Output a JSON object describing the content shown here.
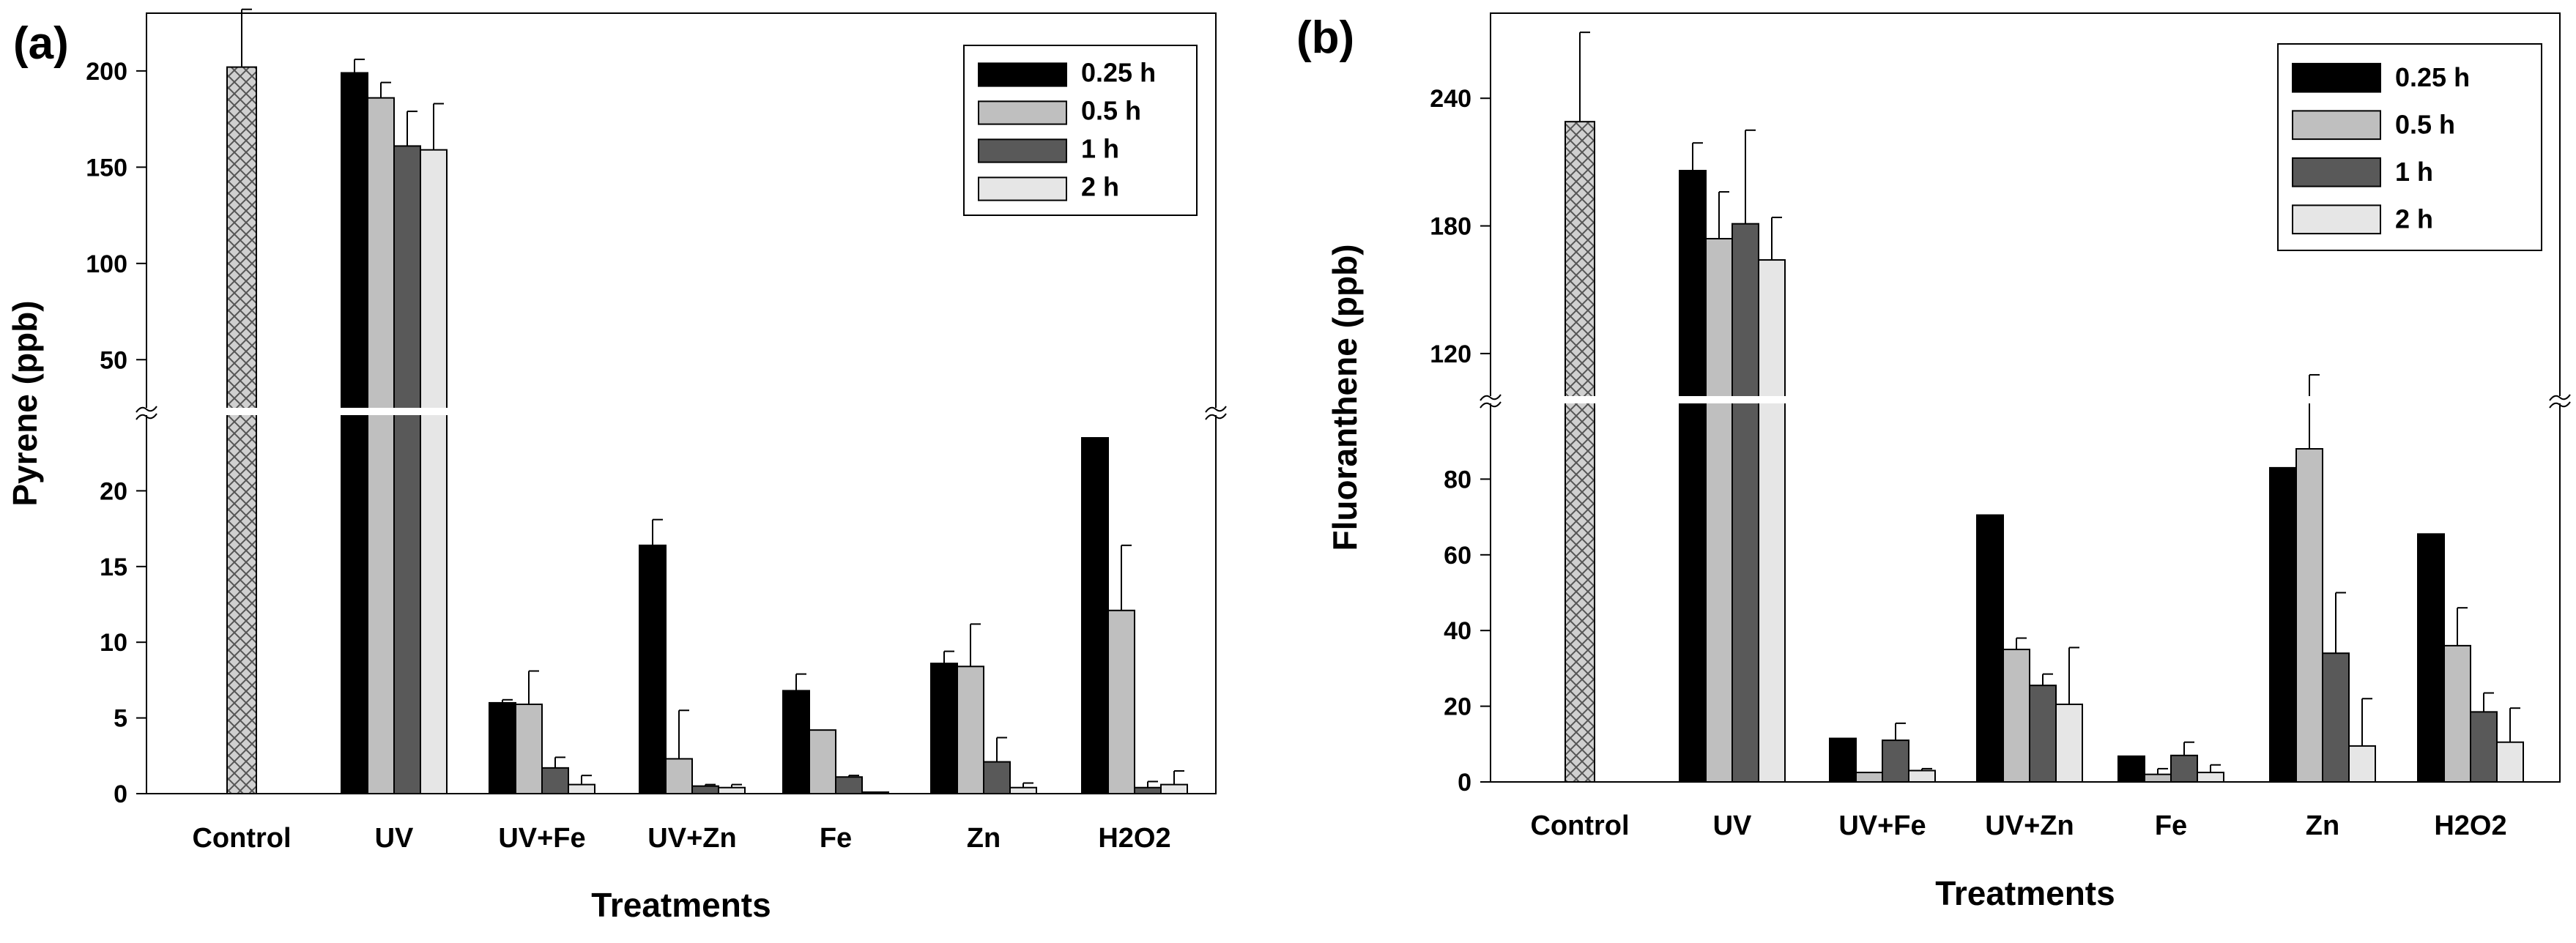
{
  "chart_data": [
    {
      "panel_label": "(a)",
      "type": "bar",
      "xlabel": "Treatments",
      "ylabel": "Pyrene (ppb)",
      "categories": [
        "Control",
        "UV",
        "UV+Fe",
        "UV+Zn",
        "Fe",
        "Zn",
        "H2O2"
      ],
      "axis_break": true,
      "lower_ylim": [
        0,
        25
      ],
      "lower_ticks": [
        0,
        5,
        10,
        15,
        20
      ],
      "upper_ylim": [
        25,
        230
      ],
      "upper_ticks": [
        50,
        100,
        150,
        200
      ],
      "control": {
        "value": 202,
        "error": 30
      },
      "series": [
        {
          "name": "0.25 h",
          "color": "#000000",
          "values": [
            null,
            199,
            6.0,
            16.4,
            6.8,
            8.6,
            23.5
          ],
          "errors": [
            null,
            7,
            0.2,
            1.7,
            1.1,
            0.8,
            0
          ]
        },
        {
          "name": "0.5 h",
          "color": "#bfbfbf",
          "values": [
            null,
            186,
            5.9,
            2.3,
            4.2,
            8.4,
            12.1
          ],
          "errors": [
            null,
            8,
            2.2,
            3.2,
            0,
            2.8,
            4.3
          ]
        },
        {
          "name": "1 h",
          "color": "#595959",
          "values": [
            null,
            161,
            1.7,
            0.5,
            1.1,
            2.1,
            0.4
          ],
          "errors": [
            null,
            18,
            0.7,
            0.1,
            0.1,
            1.6,
            0.4
          ]
        },
        {
          "name": "2 h",
          "color": "#e6e6e6",
          "values": [
            null,
            159,
            0.6,
            0.4,
            0.1,
            0.4,
            0.6
          ],
          "errors": [
            null,
            24,
            0.6,
            0.2,
            0,
            0.3,
            0.9
          ]
        }
      ]
    },
    {
      "panel_label": "(b)",
      "type": "bar",
      "xlabel": "Treatments",
      "ylabel": "Fluoranthene (ppb)",
      "categories": [
        "Control",
        "UV",
        "UV+Fe",
        "UV+Zn",
        "Fe",
        "Zn",
        "H2O2"
      ],
      "axis_break": true,
      "lower_ylim": [
        0,
        100
      ],
      "lower_ticks": [
        0,
        20,
        40,
        60,
        80
      ],
      "upper_ylim": [
        100,
        280
      ],
      "upper_ticks": [
        120,
        180,
        240
      ],
      "control": {
        "value": 229,
        "error": 42
      },
      "series": [
        {
          "name": "0.25 h",
          "color": "#000000",
          "values": [
            null,
            206,
            11.5,
            70.5,
            6.8,
            83,
            65.5
          ],
          "errors": [
            null,
            13,
            0,
            0,
            0,
            0,
            0
          ]
        },
        {
          "name": "0.5 h",
          "color": "#bfbfbf",
          "values": [
            null,
            174,
            2.5,
            35,
            2,
            88,
            36
          ],
          "errors": [
            null,
            22,
            0,
            3,
            1.5,
            22,
            10
          ]
        },
        {
          "name": "1 h",
          "color": "#595959",
          "values": [
            null,
            181,
            11,
            25.5,
            7,
            34,
            18.5
          ],
          "errors": [
            null,
            44,
            4.5,
            3,
            3.5,
            16,
            5
          ]
        },
        {
          "name": "2 h",
          "color": "#e6e6e6",
          "values": [
            null,
            164,
            3,
            20.5,
            2.5,
            9.5,
            10.5
          ],
          "errors": [
            null,
            20,
            0.5,
            15,
            2,
            12.5,
            9
          ]
        }
      ]
    }
  ]
}
